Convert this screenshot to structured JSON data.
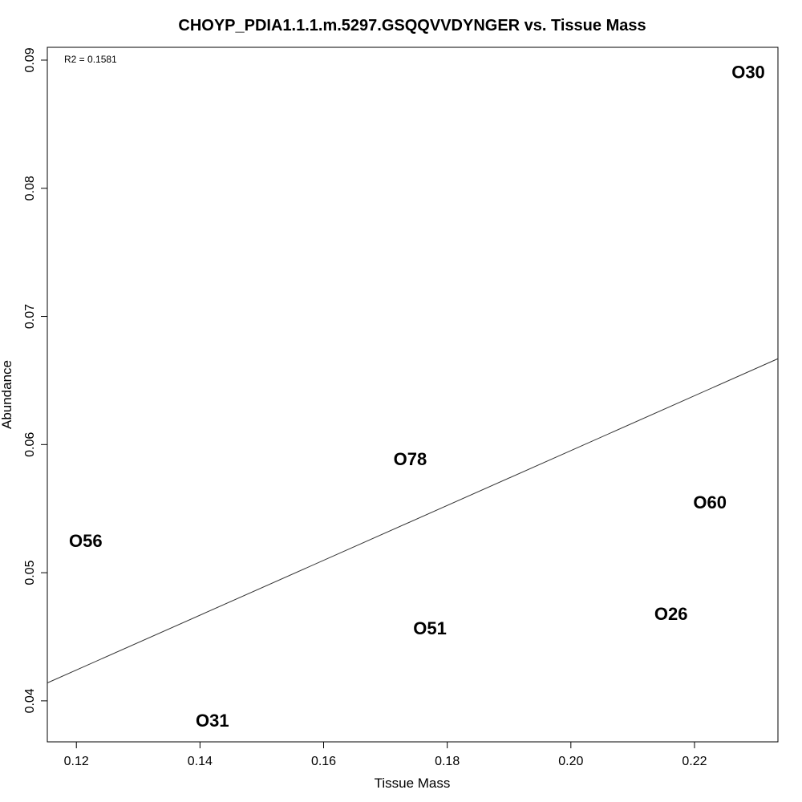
{
  "chart_data": {
    "type": "scatter",
    "title": "CHOYP_PDIA1.1.1.m.5297.GSQQVVDYNGER vs. Tissue Mass",
    "xlabel": "Tissue Mass",
    "ylabel": "Abundance",
    "annotation": "R2 = 0.1581",
    "xlim": [
      0.1153,
      0.2335
    ],
    "ylim": [
      0.0368,
      0.091
    ],
    "x_ticks": [
      0.12,
      0.14,
      0.16,
      0.18,
      0.2,
      0.22
    ],
    "x_tick_labels": [
      "0.12",
      "0.14",
      "0.16",
      "0.18",
      "0.20",
      "0.22"
    ],
    "y_ticks": [
      0.04,
      0.05,
      0.06,
      0.07,
      0.08,
      0.09
    ],
    "y_tick_labels": [
      "0.04",
      "0.05",
      "0.06",
      "0.07",
      "0.08",
      "0.09"
    ],
    "points": [
      {
        "label": "O30",
        "x": 0.2287,
        "y": 0.0891
      },
      {
        "label": "O78",
        "x": 0.174,
        "y": 0.0589
      },
      {
        "label": "O60",
        "x": 0.2225,
        "y": 0.0555
      },
      {
        "label": "O56",
        "x": 0.1215,
        "y": 0.0525
      },
      {
        "label": "O51",
        "x": 0.1772,
        "y": 0.0457
      },
      {
        "label": "O26",
        "x": 0.2162,
        "y": 0.0468
      },
      {
        "label": "O31",
        "x": 0.142,
        "y": 0.0385
      }
    ],
    "regression_line": {
      "x": [
        0.1153,
        0.2335
      ],
      "y": [
        0.0414,
        0.0667
      ]
    },
    "grid": false,
    "legend": "none"
  }
}
